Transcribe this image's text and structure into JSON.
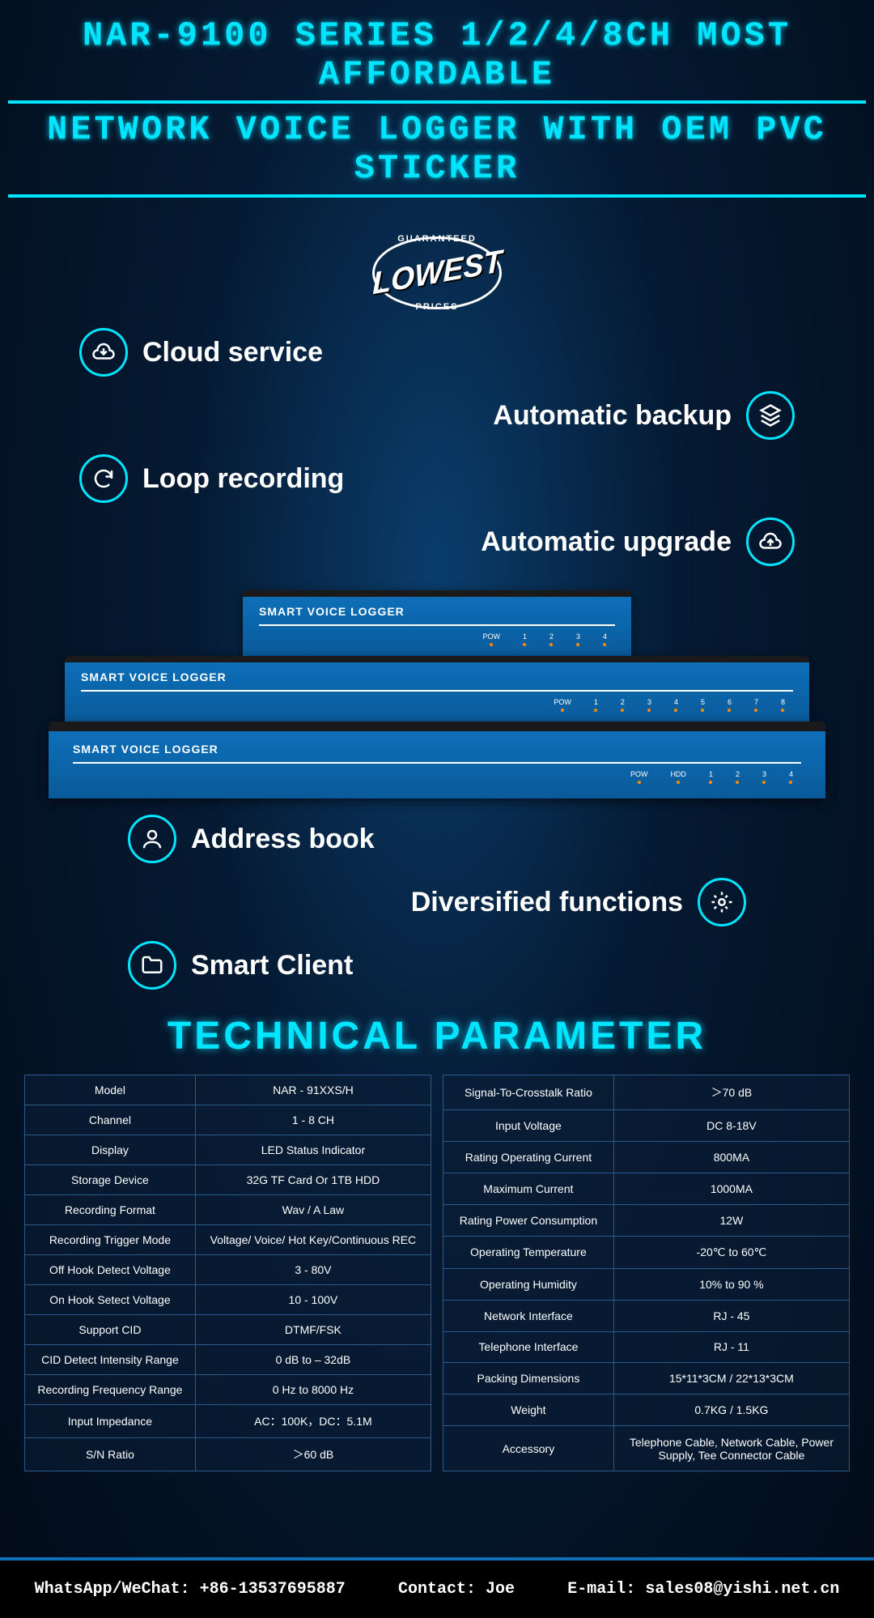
{
  "title": {
    "line1": "NAR-9100 SERIES 1/2/4/8CH MOST AFFORDABLE",
    "line2": "NETWORK VOICE LOGGER WITH OEM PVC STICKER"
  },
  "badge": {
    "top": "GUARANTEED",
    "main": "LOWEST",
    "bottom": "PRICES"
  },
  "features_top": [
    {
      "side": "left",
      "icon": "cloud-down",
      "text": "Cloud service"
    },
    {
      "side": "right",
      "icon": "layers",
      "text": "Automatic backup"
    },
    {
      "side": "left",
      "icon": "sync",
      "text": "Loop recording"
    },
    {
      "side": "right",
      "icon": "cloud-up",
      "text": "Automatic upgrade"
    }
  ],
  "features_bottom": [
    {
      "side": "left",
      "icon": "user",
      "text": "Address book"
    },
    {
      "side": "right",
      "icon": "gear",
      "text": "Diversified functions"
    },
    {
      "side": "left",
      "icon": "folder",
      "text": "Smart Client"
    }
  ],
  "devices": [
    {
      "label": "SMART VOICE LOGGER",
      "leds": [
        "POW",
        "1",
        "2",
        "3",
        "4"
      ]
    },
    {
      "label": "SMART VOICE LOGGER",
      "leds": [
        "POW",
        "1",
        "2",
        "3",
        "4",
        "5",
        "6",
        "7",
        "8"
      ]
    },
    {
      "label": "SMART VOICE LOGGER",
      "leds": [
        "POW",
        "HDD",
        "1",
        "2",
        "3",
        "4"
      ]
    }
  ],
  "tech_title": "TECHNICAL PARAMETER",
  "spec_left": [
    [
      "Model",
      "NAR - 91XXS/H"
    ],
    [
      "Channel",
      "1 - 8 CH"
    ],
    [
      "Display",
      "LED Status Indicator"
    ],
    [
      "Storage Device",
      "32G TF Card Or 1TB HDD"
    ],
    [
      "Recording Format",
      "Wav / A Law"
    ],
    [
      "Recording Trigger Mode",
      "Voltage/ Voice/ Hot Key/Continuous REC"
    ],
    [
      "Off Hook Detect Voltage",
      "3 - 80V"
    ],
    [
      "On Hook Setect Voltage",
      "10 - 100V"
    ],
    [
      "Support CID",
      "DTMF/FSK"
    ],
    [
      "CID Detect Intensity Range",
      "0 dB to – 32dB"
    ],
    [
      "Recording Frequency Range",
      "0 Hz to 8000 Hz"
    ],
    [
      "Input Impedance",
      "AC：100K，DC：5.1M"
    ],
    [
      "S/N Ratio",
      "＞60 dB"
    ]
  ],
  "spec_right": [
    [
      "Signal-To-Crosstalk Ratio",
      "＞70 dB"
    ],
    [
      "Input Voltage",
      "DC 8-18V"
    ],
    [
      "Rating Operating Current",
      "800MA"
    ],
    [
      "Maximum Current",
      "1000MA"
    ],
    [
      "Rating Power Consumption",
      "12W"
    ],
    [
      "Operating Temperature",
      "-20℃ to 60℃"
    ],
    [
      "Operating Humidity",
      "10% to 90 %"
    ],
    [
      "Network Interface",
      "RJ - 45"
    ],
    [
      "Telephone Interface",
      "RJ - 11"
    ],
    [
      "Packing Dimensions",
      "15*11*3CM / 22*13*3CM"
    ],
    [
      "Weight",
      "0.7KG / 1.5KG"
    ],
    [
      "Accessory",
      "Telephone Cable, Network Cable, Power Supply, Tee Connector Cable"
    ]
  ],
  "footer": {
    "whatsapp": "WhatsApp/WeChat: +86-13537695887",
    "contact": "Contact: Joe",
    "email": "E-mail: sales08@yishi.net.cn"
  },
  "colors": {
    "accent": "#00e5ff",
    "panel": "#0d6fb8",
    "border": "#2a5a8a"
  }
}
